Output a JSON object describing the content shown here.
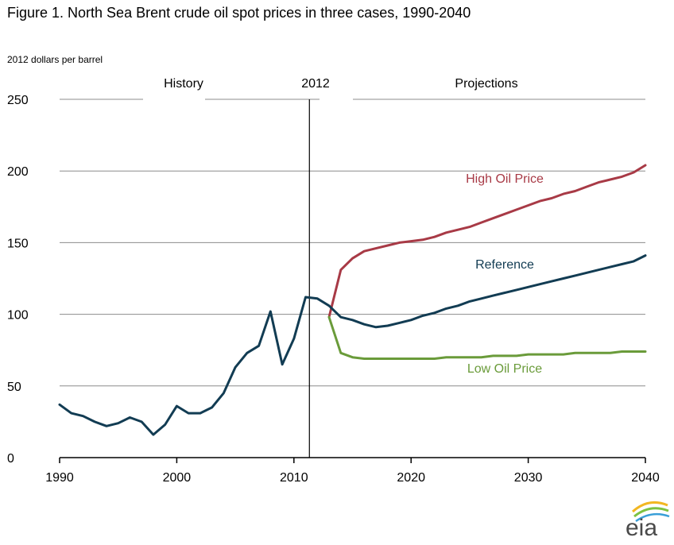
{
  "chart_data": {
    "type": "line",
    "title": "Figure 1. North Sea Brent crude oil spot prices in three cases, 1990-2040",
    "ylabel": "2012 dollars per barrel",
    "xlabel": "",
    "xlim": [
      1990,
      2040
    ],
    "ylim": [
      0,
      250
    ],
    "x_ticks": [
      1990,
      2000,
      2010,
      2020,
      2030,
      2040
    ],
    "y_ticks": [
      0,
      50,
      100,
      150,
      200,
      250
    ],
    "grid": "horizontal",
    "region_labels": [
      "History",
      "2012",
      "Projections"
    ],
    "divider_year": 2012,
    "series": [
      {
        "name": "High Oil Price",
        "color": "#a83a46",
        "x": [
          2013,
          2014,
          2015,
          2016,
          2017,
          2018,
          2019,
          2020,
          2021,
          2022,
          2023,
          2024,
          2025,
          2026,
          2027,
          2028,
          2029,
          2030,
          2031,
          2032,
          2033,
          2034,
          2035,
          2036,
          2037,
          2038,
          2039,
          2040
        ],
        "values": [
          98,
          131,
          139,
          144,
          146,
          148,
          150,
          151,
          152,
          154,
          157,
          159,
          161,
          164,
          167,
          170,
          173,
          176,
          179,
          181,
          184,
          186,
          189,
          192,
          194,
          196,
          199,
          204
        ]
      },
      {
        "name": "Reference",
        "color": "#123c53",
        "x": [
          1990,
          1991,
          1992,
          1993,
          1994,
          1995,
          1996,
          1997,
          1998,
          1999,
          2000,
          2001,
          2002,
          2003,
          2004,
          2005,
          2006,
          2007,
          2008,
          2009,
          2010,
          2011,
          2012,
          2013,
          2014,
          2015,
          2016,
          2017,
          2018,
          2019,
          2020,
          2021,
          2022,
          2023,
          2024,
          2025,
          2026,
          2027,
          2028,
          2029,
          2030,
          2031,
          2032,
          2033,
          2034,
          2035,
          2036,
          2037,
          2038,
          2039,
          2040
        ],
        "values": [
          37,
          31,
          29,
          25,
          22,
          24,
          28,
          25,
          16,
          23,
          36,
          31,
          31,
          35,
          45,
          63,
          73,
          78,
          102,
          65,
          83,
          112,
          111,
          106,
          98,
          96,
          93,
          91,
          92,
          94,
          96,
          99,
          101,
          104,
          106,
          109,
          111,
          113,
          115,
          117,
          119,
          121,
          123,
          125,
          127,
          129,
          131,
          133,
          135,
          137,
          141
        ]
      },
      {
        "name": "Low Oil Price",
        "color": "#6a9b3a",
        "x": [
          2013,
          2014,
          2015,
          2016,
          2017,
          2018,
          2019,
          2020,
          2021,
          2022,
          2023,
          2024,
          2025,
          2026,
          2027,
          2028,
          2029,
          2030,
          2031,
          2032,
          2033,
          2034,
          2035,
          2036,
          2037,
          2038,
          2039,
          2040
        ],
        "values": [
          98,
          73,
          70,
          69,
          69,
          69,
          69,
          69,
          69,
          69,
          70,
          70,
          70,
          70,
          71,
          71,
          71,
          72,
          72,
          72,
          72,
          73,
          73,
          73,
          73,
          74,
          74,
          74
        ]
      }
    ]
  },
  "logo": {
    "text": "eia",
    "colors": [
      "#f2b722",
      "#7dc242",
      "#3a9fd8",
      "#1b75bb"
    ]
  }
}
